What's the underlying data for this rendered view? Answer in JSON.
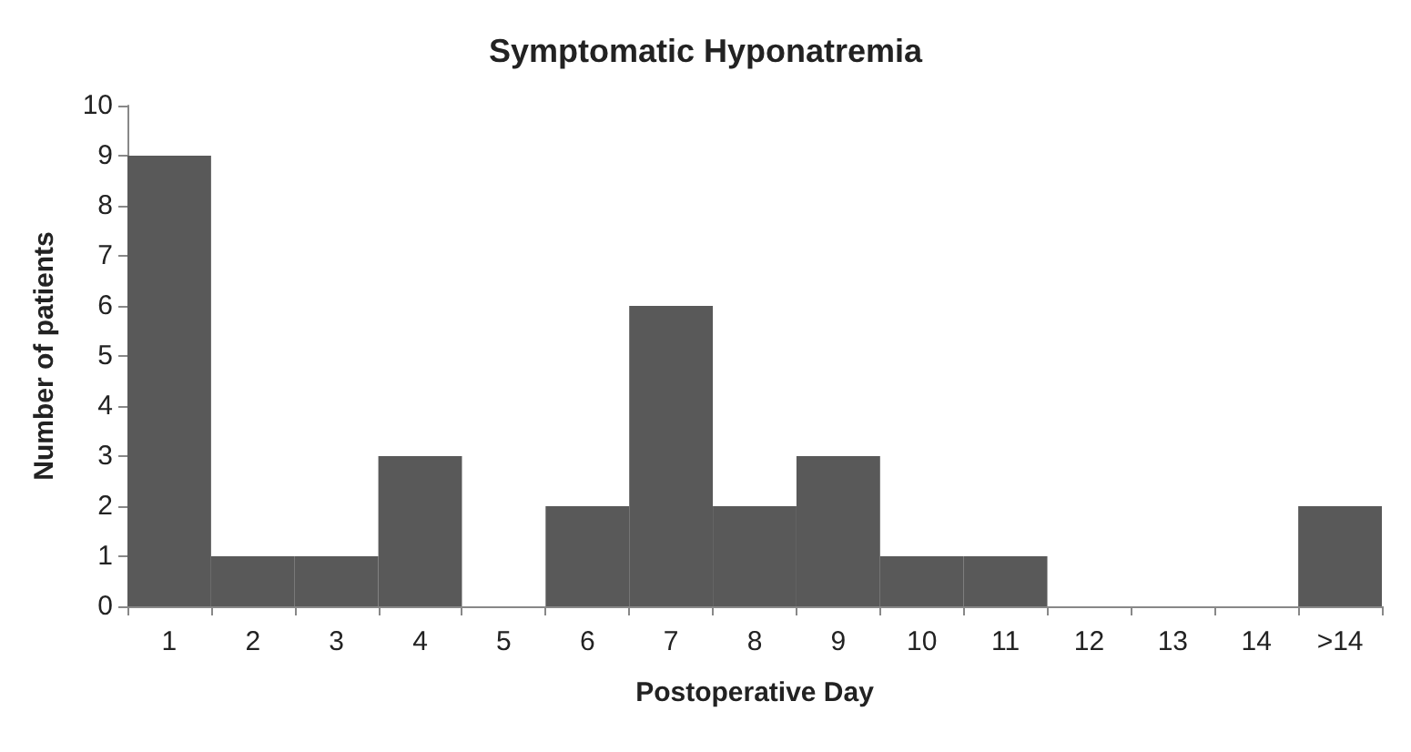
{
  "chart_data": {
    "type": "bar",
    "title": "Symptomatic Hyponatremia",
    "xlabel": "Postoperative Day",
    "ylabel": "Number of patients",
    "categories": [
      "1",
      "2",
      "3",
      "4",
      "5",
      "6",
      "7",
      "8",
      "9",
      "10",
      "11",
      "12",
      "13",
      "14",
      ">14"
    ],
    "values": [
      9,
      1,
      1,
      3,
      0,
      2,
      6,
      2,
      3,
      1,
      1,
      0,
      0,
      0,
      2
    ],
    "color": "#595959",
    "ylim": [
      0,
      10
    ],
    "yticks": [
      0,
      1,
      2,
      3,
      4,
      5,
      6,
      7,
      8,
      9,
      10
    ],
    "grid": false
  }
}
